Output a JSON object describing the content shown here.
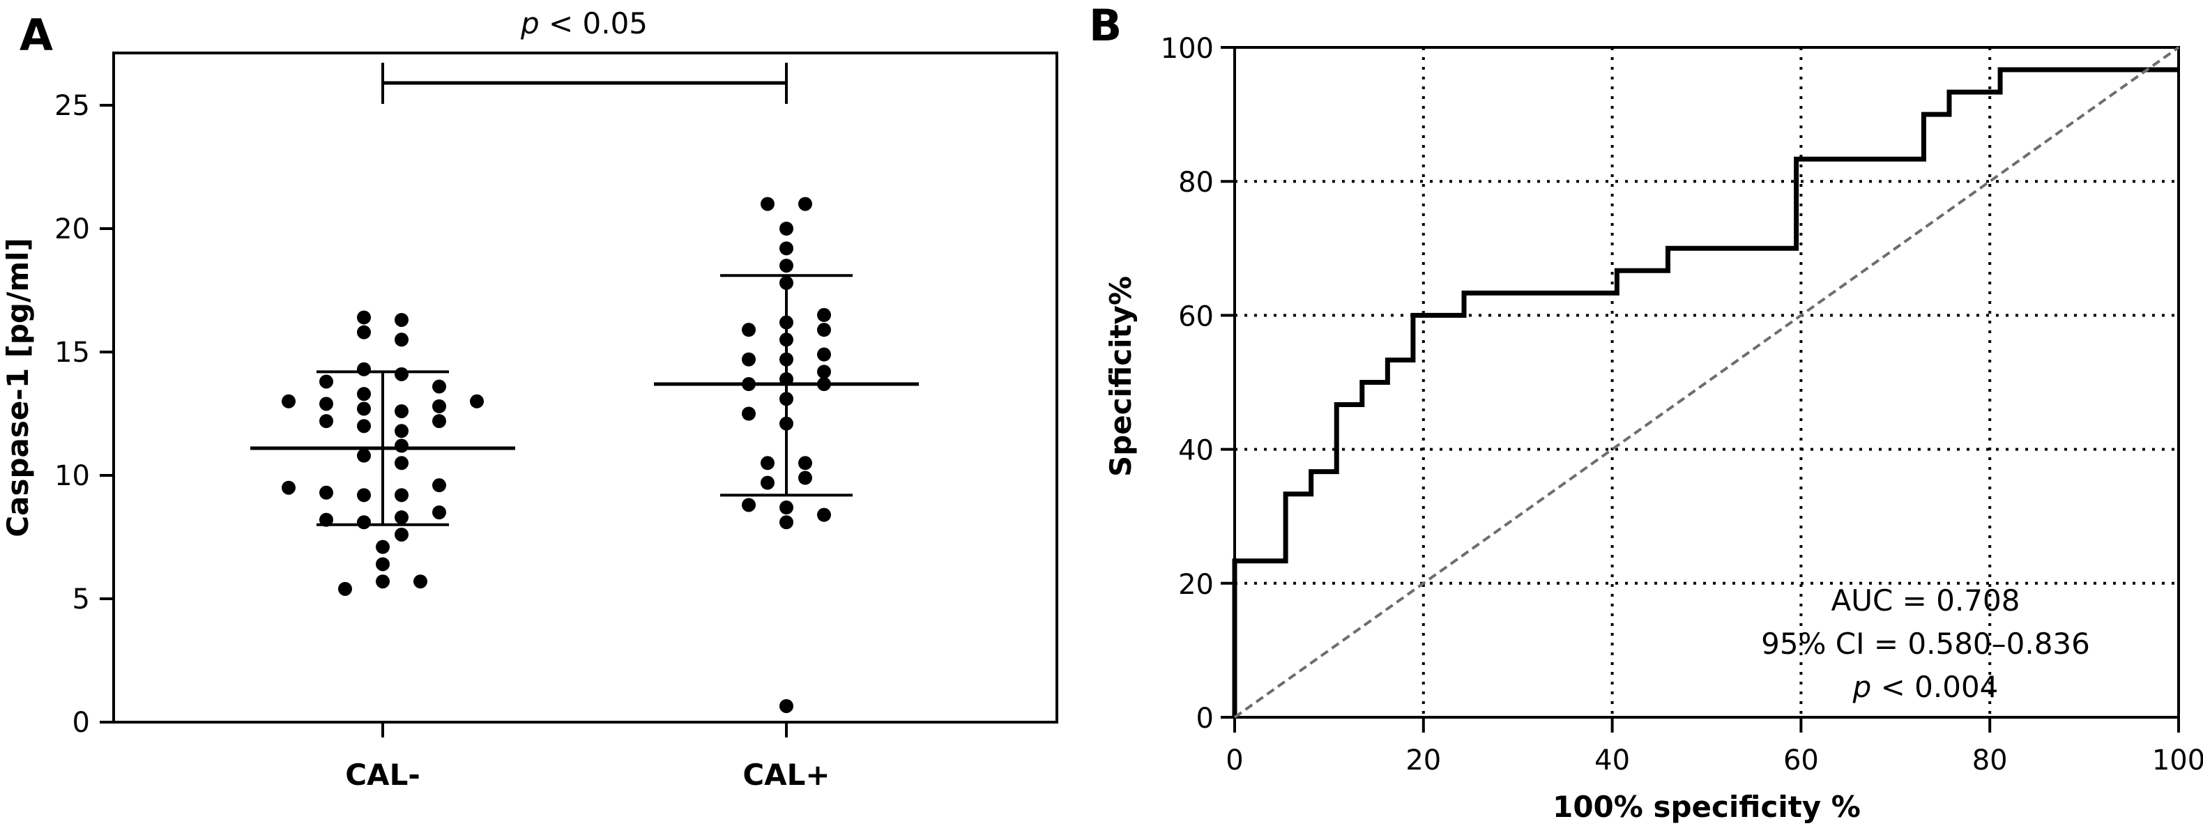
{
  "chart_data": [
    {
      "panel": "A",
      "type": "scatter",
      "title": "",
      "xlabel": "",
      "ylabel": "Caspase-1 [pg/ml]",
      "ylim": [
        0,
        27
      ],
      "yticks": [
        0,
        5,
        10,
        15,
        20,
        25
      ],
      "categories": [
        "CAL-",
        "CAL+"
      ],
      "grid": false,
      "significance": {
        "label_prefix": "p",
        "label_rest": " < 0.05",
        "between": [
          "CAL-",
          "CAL+"
        ]
      },
      "series": [
        {
          "name": "CAL-",
          "mean": 11.1,
          "sd_upper": 14.2,
          "sd_lower": 8.0,
          "points": [
            {
              "offset": -1,
              "value": 16.4
            },
            {
              "offset": 1,
              "value": 16.3
            },
            {
              "offset": -1,
              "value": 15.8
            },
            {
              "offset": 1,
              "value": 15.5
            },
            {
              "offset": -1,
              "value": 14.3
            },
            {
              "offset": 1,
              "value": 14.1
            },
            {
              "offset": -3,
              "value": 13.8
            },
            {
              "offset": 3,
              "value": 13.6
            },
            {
              "offset": -5,
              "value": 13.0
            },
            {
              "offset": -3,
              "value": 12.9
            },
            {
              "offset": -1,
              "value": 13.3
            },
            {
              "offset": -1,
              "value": 12.7
            },
            {
              "offset": 3,
              "value": 12.8
            },
            {
              "offset": 5,
              "value": 13.0
            },
            {
              "offset": 1,
              "value": 12.6
            },
            {
              "offset": -3,
              "value": 12.2
            },
            {
              "offset": -1,
              "value": 12.0
            },
            {
              "offset": 3,
              "value": 12.2
            },
            {
              "offset": 1,
              "value": 11.8
            },
            {
              "offset": 1,
              "value": 11.2
            },
            {
              "offset": -1,
              "value": 10.8
            },
            {
              "offset": 1,
              "value": 10.5
            },
            {
              "offset": -5,
              "value": 9.5
            },
            {
              "offset": -3,
              "value": 9.3
            },
            {
              "offset": -1,
              "value": 9.2
            },
            {
              "offset": 1,
              "value": 9.2
            },
            {
              "offset": 3,
              "value": 9.6
            },
            {
              "offset": -3,
              "value": 8.2
            },
            {
              "offset": -1,
              "value": 8.1
            },
            {
              "offset": 1,
              "value": 8.3
            },
            {
              "offset": 3,
              "value": 8.5
            },
            {
              "offset": 1,
              "value": 7.6
            },
            {
              "offset": 0,
              "value": 7.1
            },
            {
              "offset": 0,
              "value": 6.4
            },
            {
              "offset": 0,
              "value": 5.7
            },
            {
              "offset": 2,
              "value": 5.7
            },
            {
              "offset": -2,
              "value": 5.4
            }
          ]
        },
        {
          "name": "CAL+",
          "mean": 13.7,
          "sd_upper": 18.1,
          "sd_lower": 9.2,
          "points": [
            {
              "offset": -1,
              "value": 21.0
            },
            {
              "offset": 1,
              "value": 21.0
            },
            {
              "offset": 0,
              "value": 20.0
            },
            {
              "offset": 0,
              "value": 19.2
            },
            {
              "offset": 0,
              "value": 18.5
            },
            {
              "offset": 0,
              "value": 17.8
            },
            {
              "offset": 2,
              "value": 16.5
            },
            {
              "offset": 2,
              "value": 15.9
            },
            {
              "offset": -2,
              "value": 15.9
            },
            {
              "offset": 0,
              "value": 16.2
            },
            {
              "offset": 0,
              "value": 15.5
            },
            {
              "offset": -2,
              "value": 14.7
            },
            {
              "offset": 0,
              "value": 14.7
            },
            {
              "offset": 2,
              "value": 14.9
            },
            {
              "offset": 2,
              "value": 14.2
            },
            {
              "offset": 0,
              "value": 13.9
            },
            {
              "offset": -2,
              "value": 13.7
            },
            {
              "offset": 2,
              "value": 13.7
            },
            {
              "offset": 0,
              "value": 13.1
            },
            {
              "offset": -2,
              "value": 12.5
            },
            {
              "offset": 0,
              "value": 12.1
            },
            {
              "offset": -1,
              "value": 10.5
            },
            {
              "offset": 1,
              "value": 10.5
            },
            {
              "offset": -1,
              "value": 9.7
            },
            {
              "offset": 1,
              "value": 9.9
            },
            {
              "offset": -2,
              "value": 8.8
            },
            {
              "offset": 0,
              "value": 8.7
            },
            {
              "offset": 2,
              "value": 8.4
            },
            {
              "offset": 0,
              "value": 8.1
            },
            {
              "offset": 0,
              "value": 0.65
            }
          ]
        }
      ]
    },
    {
      "panel": "B",
      "type": "line",
      "title": "",
      "xlabel": "100% specificity %",
      "ylabel": "Specificity%",
      "xlim": [
        0,
        100
      ],
      "ylim": [
        0,
        100
      ],
      "xticks": [
        0,
        20,
        40,
        60,
        80,
        100
      ],
      "yticks": [
        0,
        20,
        40,
        60,
        80,
        100
      ],
      "grid": true,
      "series": [
        {
          "name": "ROC",
          "style": "step",
          "x": [
            0,
            0,
            5.4,
            5.4,
            8.1,
            8.1,
            10.8,
            10.8,
            13.5,
            13.5,
            16.2,
            16.2,
            18.9,
            18.9,
            24.3,
            24.3,
            40.5,
            40.5,
            45.9,
            45.9,
            59.5,
            59.5,
            73.0,
            73.0,
            75.7,
            75.7,
            81.1,
            81.1,
            100
          ],
          "y": [
            0,
            23.33,
            23.33,
            33.33,
            33.33,
            36.67,
            36.67,
            46.67,
            46.67,
            50.0,
            50.0,
            53.33,
            53.33,
            60.0,
            60.0,
            63.33,
            63.33,
            66.67,
            66.67,
            70.0,
            70.0,
            83.33,
            83.33,
            90.0,
            90.0,
            93.33,
            93.33,
            96.67,
            96.67
          ]
        },
        {
          "name": "Reference",
          "style": "dashed",
          "x": [
            0,
            100
          ],
          "y": [
            0,
            100
          ]
        }
      ],
      "annotations": [
        "AUC = 0.708",
        "95% CI = 0.580–0.836",
        {
          "prefix": "p",
          "rest": " < 0.004"
        }
      ]
    }
  ],
  "colors": {
    "ink": "#000000",
    "reference_line": "#6e6e6e",
    "background": "#ffffff"
  },
  "panels": {
    "a_label": "A",
    "b_label": "B"
  }
}
